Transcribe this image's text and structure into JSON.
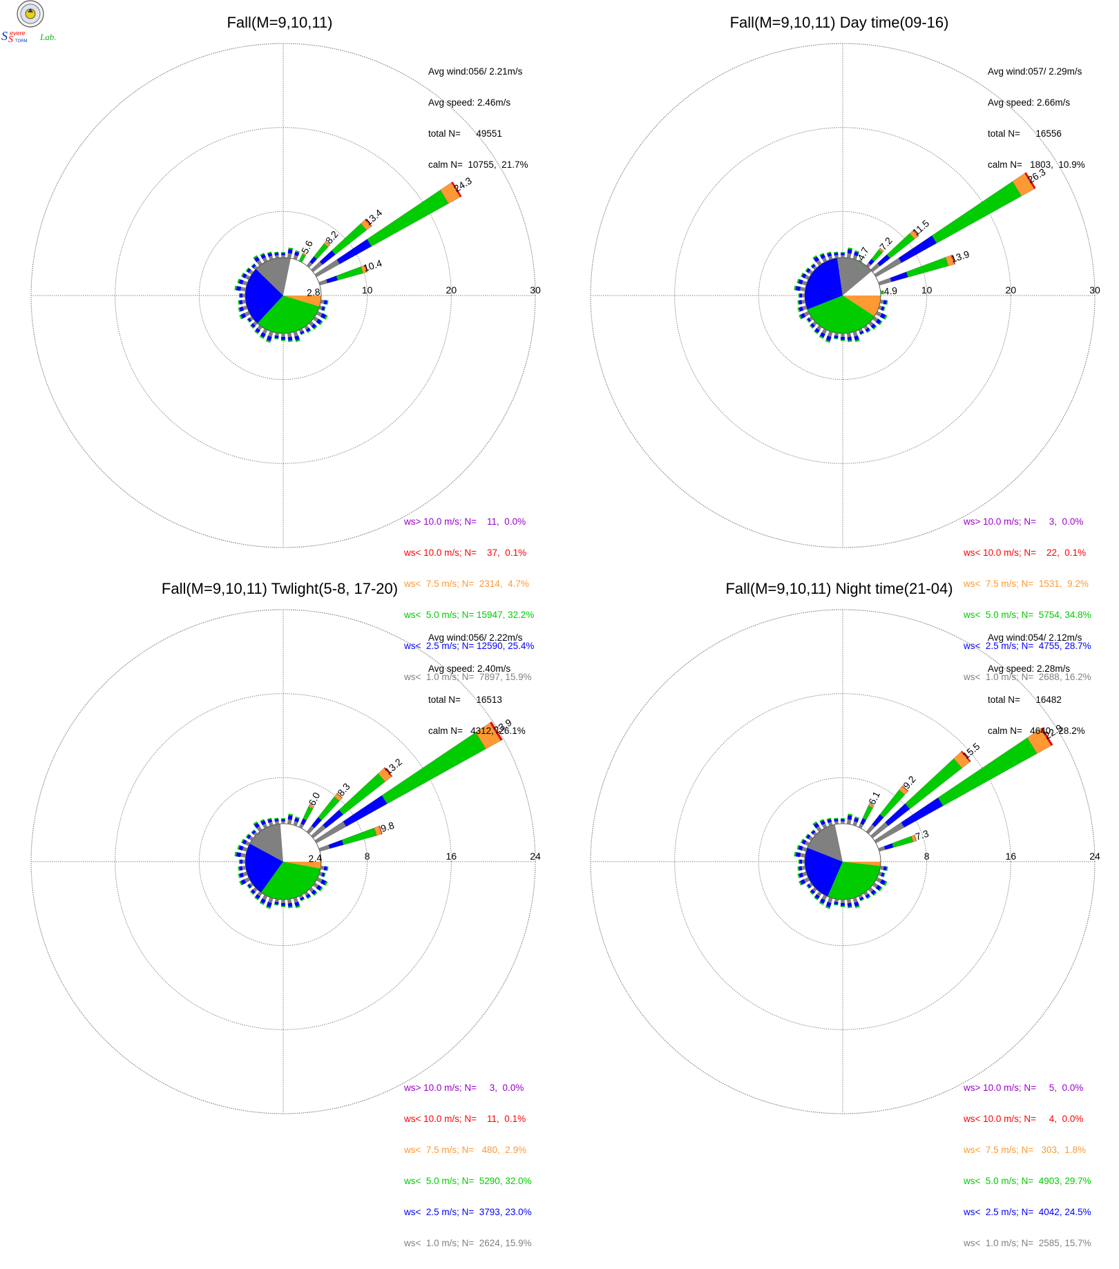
{
  "logo": {
    "text_s1": "S",
    "text_evere": "evere",
    "text_s2": "S",
    "text_torm": "TORM",
    "text_lab": "Lab."
  },
  "colors": {
    "calm": "#ffffff",
    "ws_lt_1": "#808080",
    "ws_lt_2_5": "#0000ff",
    "ws_lt_5": "#00cc00",
    "ws_lt_7_5": "#ff9933",
    "ws_lt_10": "#ff0000",
    "ws_gt_10": "#9900cc",
    "grid": "#888888"
  },
  "chart_data": [
    {
      "type": "polar-bar",
      "title": "Fall(M=9,10,11)",
      "stats": {
        "avg_wind": "Avg wind:056/ 2.21m/s",
        "avg_speed": "Avg speed: 2.46m/s",
        "total": "total N=      49551",
        "calm": "calm N=  10755,  21.7%"
      },
      "rmax": 30,
      "ring_labels": [
        "10",
        "20",
        "30"
      ],
      "ring_values": [
        10,
        20,
        30
      ],
      "petals": [
        {
          "dir_deg": 27.0,
          "value": 5.6,
          "label": "5.6"
        },
        {
          "dir_deg": 40.5,
          "value": 8.2,
          "label": "8.2"
        },
        {
          "dir_deg": 49.5,
          "value": 13.4,
          "label": "13.4"
        },
        {
          "dir_deg": 58.5,
          "value": 24.3,
          "label": "24.3"
        },
        {
          "dir_deg": 72.0,
          "value": 10.4,
          "label": "10.4"
        },
        {
          "dir_deg": 85.5,
          "value": 2.8,
          "label": "2.8"
        }
      ],
      "pie": [
        {
          "class": "ws_lt_7_5",
          "pct": 4.7
        },
        {
          "class": "ws_lt_5",
          "pct": 32.2
        },
        {
          "class": "ws_lt_2_5",
          "pct": 25.4
        },
        {
          "class": "ws_lt_1",
          "pct": 15.9
        },
        {
          "class": "calm",
          "pct": 21.8
        }
      ],
      "legend": [
        {
          "class": "ws_gt_10",
          "text": "ws> 10.0 m/s; N=    11,  0.0%"
        },
        {
          "class": "ws_lt_10",
          "text": "ws< 10.0 m/s; N=    37,  0.1%"
        },
        {
          "class": "ws_lt_7_5",
          "text": "ws<  7.5 m/s; N=  2314,  4.7%"
        },
        {
          "class": "ws_lt_5",
          "text": "ws<  5.0 m/s; N= 15947, 32.2%"
        },
        {
          "class": "ws_lt_2_5",
          "text": "ws<  2.5 m/s; N= 12590, 25.4%"
        },
        {
          "class": "ws_lt_1",
          "text": "ws<  1.0 m/s; N=  7897, 15.9%"
        }
      ]
    },
    {
      "type": "polar-bar",
      "title": "Fall(M=9,10,11) Day time(09-16)",
      "stats": {
        "avg_wind": "Avg wind:057/ 2.29m/s",
        "avg_speed": "Avg speed: 2.66m/s",
        "total": "total N=      16556",
        "calm": "calm N=   1803,  10.9%"
      },
      "rmax": 30,
      "ring_labels": [
        "10",
        "20",
        "30"
      ],
      "ring_values": [
        10,
        20,
        30
      ],
      "petals": [
        {
          "dir_deg": 27.0,
          "value": 4.7,
          "label": "4.7"
        },
        {
          "dir_deg": 40.5,
          "value": 7.2,
          "label": "7.2"
        },
        {
          "dir_deg": 49.5,
          "value": 11.5,
          "label": "11.5"
        },
        {
          "dir_deg": 58.5,
          "value": 26.3,
          "label": "26.3"
        },
        {
          "dir_deg": 72.0,
          "value": 13.9,
          "label": "13.9"
        },
        {
          "dir_deg": 85.5,
          "value": 4.9,
          "label": "4.9"
        }
      ],
      "pie": [
        {
          "class": "ws_lt_7_5",
          "pct": 9.2
        },
        {
          "class": "ws_lt_5",
          "pct": 34.8
        },
        {
          "class": "ws_lt_2_5",
          "pct": 28.7
        },
        {
          "class": "ws_lt_1",
          "pct": 16.2
        },
        {
          "class": "calm",
          "pct": 11.1
        }
      ],
      "legend": [
        {
          "class": "ws_gt_10",
          "text": "ws> 10.0 m/s; N=     3,  0.0%"
        },
        {
          "class": "ws_lt_10",
          "text": "ws< 10.0 m/s; N=    22,  0.1%"
        },
        {
          "class": "ws_lt_7_5",
          "text": "ws<  7.5 m/s; N=  1531,  9.2%"
        },
        {
          "class": "ws_lt_5",
          "text": "ws<  5.0 m/s; N=  5754, 34.8%"
        },
        {
          "class": "ws_lt_2_5",
          "text": "ws<  2.5 m/s; N=  4755, 28.7%"
        },
        {
          "class": "ws_lt_1",
          "text": "ws<  1.0 m/s; N=  2688, 16.2%"
        }
      ]
    },
    {
      "type": "polar-bar",
      "title": "Fall(M=9,10,11) Twlight(5-8, 17-20)",
      "stats": {
        "avg_wind": "Avg wind:056/ 2.22m/s",
        "avg_speed": "Avg speed: 2.40m/s",
        "total": "total N=      16513",
        "calm": "calm N=   4312,  26.1%"
      },
      "rmax": 24,
      "ring_labels": [
        "8",
        "16",
        "24"
      ],
      "ring_values": [
        8,
        16,
        24
      ],
      "petals": [
        {
          "dir_deg": 27.0,
          "value": 6.0,
          "label": "6.0"
        },
        {
          "dir_deg": 40.5,
          "value": 8.3,
          "label": "8.3"
        },
        {
          "dir_deg": 49.5,
          "value": 13.2,
          "label": "13.2"
        },
        {
          "dir_deg": 58.5,
          "value": 23.9,
          "label": "23.9"
        },
        {
          "dir_deg": 72.0,
          "value": 9.8,
          "label": "9.8"
        },
        {
          "dir_deg": 85.5,
          "value": 2.4,
          "label": "2.4"
        }
      ],
      "pie": [
        {
          "class": "ws_lt_7_5",
          "pct": 2.9
        },
        {
          "class": "ws_lt_5",
          "pct": 32.0
        },
        {
          "class": "ws_lt_2_5",
          "pct": 23.0
        },
        {
          "class": "ws_lt_1",
          "pct": 15.9
        },
        {
          "class": "calm",
          "pct": 26.2
        }
      ],
      "legend": [
        {
          "class": "ws_gt_10",
          "text": "ws> 10.0 m/s; N=     3,  0.0%"
        },
        {
          "class": "ws_lt_10",
          "text": "ws< 10.0 m/s; N=    11,  0.1%"
        },
        {
          "class": "ws_lt_7_5",
          "text": "ws<  7.5 m/s; N=   480,  2.9%"
        },
        {
          "class": "ws_lt_5",
          "text": "ws<  5.0 m/s; N=  5290, 32.0%"
        },
        {
          "class": "ws_lt_2_5",
          "text": "ws<  2.5 m/s; N=  3793, 23.0%"
        },
        {
          "class": "ws_lt_1",
          "text": "ws<  1.0 m/s; N=  2624, 15.9%"
        }
      ]
    },
    {
      "type": "polar-bar",
      "title": "Fall(M=9,10,11) Night time(21-04)",
      "stats": {
        "avg_wind": "Avg wind:054/ 2.12m/s",
        "avg_speed": "Avg speed: 2.28m/s",
        "total": "total N=      16482",
        "calm": "calm N=   4640,  28.2%"
      },
      "rmax": 24,
      "ring_labels": [
        "8",
        "16",
        "24"
      ],
      "ring_values": [
        8,
        16,
        24
      ],
      "petals": [
        {
          "dir_deg": 27.0,
          "value": 6.1,
          "label": "6.1"
        },
        {
          "dir_deg": 40.5,
          "value": 9.2,
          "label": "9.2"
        },
        {
          "dir_deg": 49.5,
          "value": 15.5,
          "label": "15.5"
        },
        {
          "dir_deg": 58.5,
          "value": 22.9,
          "label": "22.9"
        },
        {
          "dir_deg": 72.0,
          "value": 7.3,
          "label": "7.3"
        }
      ],
      "pie": [
        {
          "class": "ws_lt_7_5",
          "pct": 1.8
        },
        {
          "class": "ws_lt_5",
          "pct": 29.7
        },
        {
          "class": "ws_lt_2_5",
          "pct": 24.5
        },
        {
          "class": "ws_lt_1",
          "pct": 15.7
        },
        {
          "class": "calm",
          "pct": 28.3
        }
      ],
      "legend": [
        {
          "class": "ws_gt_10",
          "text": "ws> 10.0 m/s; N=     5,  0.0%"
        },
        {
          "class": "ws_lt_10",
          "text": "ws< 10.0 m/s; N=     4,  0.0%"
        },
        {
          "class": "ws_lt_7_5",
          "text": "ws<  7.5 m/s; N=   303,  1.8%"
        },
        {
          "class": "ws_lt_5",
          "text": "ws<  5.0 m/s; N=  4903, 29.7%"
        },
        {
          "class": "ws_lt_2_5",
          "text": "ws<  2.5 m/s; N=  4042, 24.5%"
        },
        {
          "class": "ws_lt_1",
          "text": "ws<  1.0 m/s; N=  2585, 15.7%"
        }
      ]
    }
  ]
}
